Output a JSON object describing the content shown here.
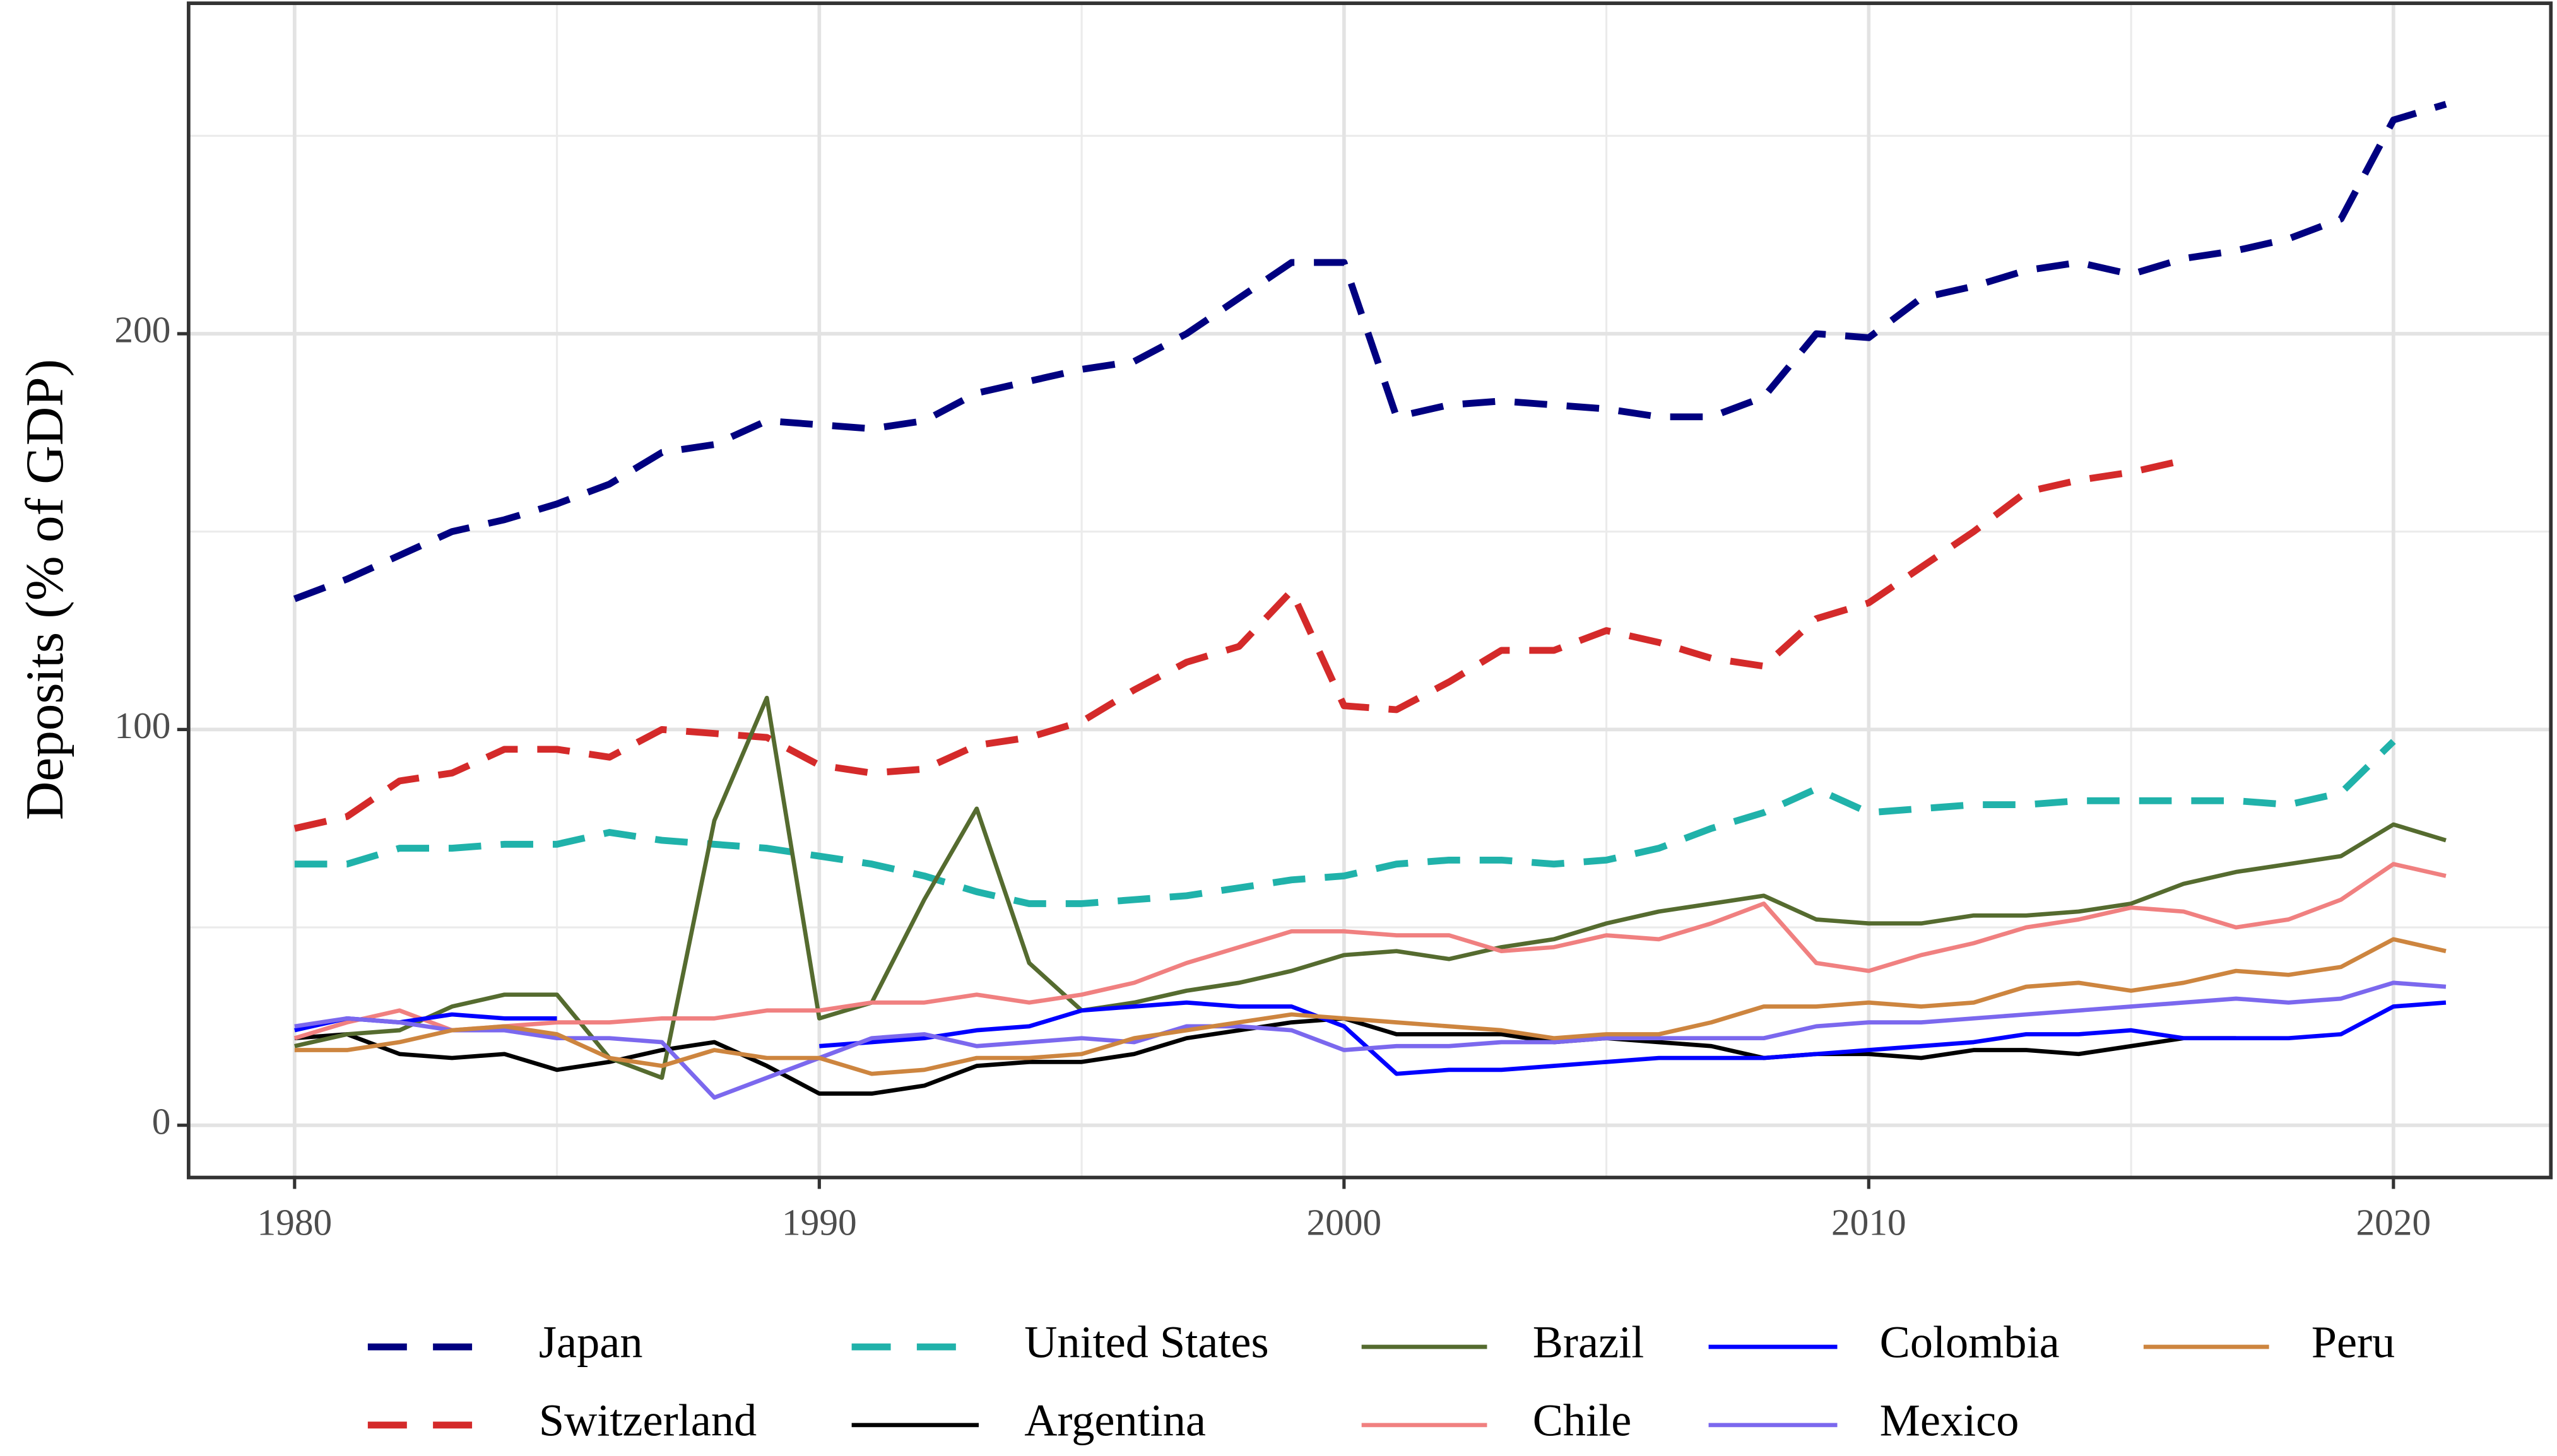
{
  "chart_data": {
    "type": "line",
    "y_label": "Deposits (% of GDP)",
    "x": [
      1980,
      1981,
      1982,
      1983,
      1984,
      1985,
      1986,
      1987,
      1988,
      1989,
      1990,
      1991,
      1992,
      1993,
      1994,
      1995,
      1996,
      1997,
      1998,
      1999,
      2000,
      2001,
      2002,
      2003,
      2004,
      2005,
      2006,
      2007,
      2008,
      2009,
      2010,
      2011,
      2012,
      2013,
      2014,
      2015,
      2016,
      2017,
      2018,
      2019,
      2020,
      2021
    ],
    "xlim": [
      1977.98,
      2023.0
    ],
    "xticks": [
      1980,
      1990,
      2000,
      2010,
      2020
    ],
    "x_minor_ticks": [
      1985,
      1995,
      2005,
      2015
    ],
    "ylim": [
      -13.2,
      283.5
    ],
    "yticks": [
      0,
      100,
      200
    ],
    "y_minor_ticks": [
      50,
      150,
      250
    ],
    "grid": true,
    "series": [
      {
        "name": "Japan",
        "color": "#000080",
        "linetype": "dashed",
        "values": [
          133,
          138,
          144,
          150,
          153,
          157,
          162,
          170,
          172,
          178,
          177,
          176,
          178,
          185,
          188,
          191,
          193,
          200,
          209,
          218,
          218,
          179,
          182,
          183,
          182,
          181,
          179,
          179,
          184,
          200,
          199,
          209,
          212,
          216,
          218,
          215,
          219,
          221,
          224,
          229,
          254,
          258
        ]
      },
      {
        "name": "Switzerland",
        "color": "#d42a2a",
        "linetype": "dashed",
        "values": [
          75,
          78,
          87,
          89,
          95,
          95,
          93,
          100,
          99,
          98,
          91,
          89,
          90,
          96,
          98,
          102,
          110,
          117,
          121,
          135,
          106,
          105,
          112,
          120,
          120,
          125,
          122,
          118,
          116,
          128,
          132,
          141,
          150,
          160,
          163,
          165,
          168,
          null,
          null,
          null,
          null,
          null
        ]
      },
      {
        "name": "United States",
        "color": "#20b2aa",
        "linetype": "dashed",
        "values": [
          66,
          66,
          70,
          70,
          71,
          71,
          74,
          72,
          71,
          70,
          68,
          66,
          63,
          59,
          56,
          56,
          57,
          58,
          60,
          62,
          63,
          66,
          67,
          67,
          66,
          67,
          70,
          75,
          79,
          85,
          79,
          80,
          81,
          81,
          82,
          82,
          82,
          82,
          81,
          84,
          97,
          null
        ]
      },
      {
        "name": "Argentina",
        "color": "#000000",
        "linetype": "solid",
        "values": [
          22,
          23,
          18,
          17,
          18,
          14,
          16,
          19,
          21,
          15,
          8,
          8,
          10,
          15,
          16,
          16,
          18,
          22,
          24,
          26,
          27,
          23,
          23,
          23,
          21,
          22,
          21,
          20,
          17,
          18,
          18,
          17,
          19,
          19,
          18,
          20,
          22,
          22,
          null,
          null,
          null,
          null
        ]
      },
      {
        "name": "Brazil",
        "color": "#556b2f",
        "linetype": "solid",
        "values": [
          20,
          23,
          24,
          30,
          33,
          33,
          17,
          12,
          77,
          108,
          27,
          31,
          57,
          80,
          41,
          29,
          31,
          34,
          36,
          39,
          43,
          44,
          42,
          45,
          47,
          51,
          54,
          56,
          58,
          52,
          51,
          51,
          53,
          53,
          54,
          56,
          61,
          64,
          66,
          68,
          76,
          72
        ]
      },
      {
        "name": "Chile",
        "color": "#f08080",
        "linetype": "solid",
        "values": [
          22,
          26,
          29,
          24,
          25,
          26,
          26,
          27,
          27,
          29,
          29,
          31,
          31,
          33,
          31,
          33,
          36,
          41,
          45,
          49,
          49,
          48,
          48,
          44,
          45,
          48,
          47,
          51,
          56,
          41,
          39,
          43,
          46,
          50,
          52,
          55,
          54,
          50,
          52,
          57,
          66,
          63
        ]
      },
      {
        "name": "Colombia",
        "color": "#0000ff",
        "linetype": "solid",
        "values": [
          24,
          27,
          26,
          28,
          27,
          27,
          null,
          null,
          null,
          null,
          20,
          21,
          22,
          24,
          25,
          29,
          30,
          31,
          30,
          30,
          25,
          13,
          14,
          14,
          15,
          16,
          17,
          17,
          17,
          18,
          19,
          20,
          21,
          23,
          23,
          24,
          22,
          22,
          22,
          23,
          30,
          31
        ]
      },
      {
        "name": "Mexico",
        "color": "#7b68ee",
        "linetype": "solid",
        "values": [
          25,
          27,
          26,
          24,
          24,
          22,
          22,
          21,
          7,
          12,
          17,
          22,
          23,
          20,
          21,
          22,
          21,
          25,
          25,
          24,
          19,
          20,
          20,
          21,
          21,
          22,
          22,
          22,
          22,
          25,
          26,
          26,
          27,
          28,
          29,
          30,
          31,
          32,
          31,
          32,
          36,
          35
        ]
      },
      {
        "name": "Peru",
        "color": "#cd853f",
        "linetype": "solid",
        "values": [
          19,
          19,
          21,
          24,
          25,
          23,
          17,
          15,
          19,
          17,
          17,
          13,
          14,
          17,
          17,
          18,
          22,
          24,
          26,
          28,
          27,
          26,
          25,
          24,
          22,
          23,
          23,
          26,
          30,
          30,
          31,
          30,
          31,
          35,
          36,
          34,
          36,
          39,
          38,
          40,
          47,
          44
        ]
      }
    ]
  }
}
